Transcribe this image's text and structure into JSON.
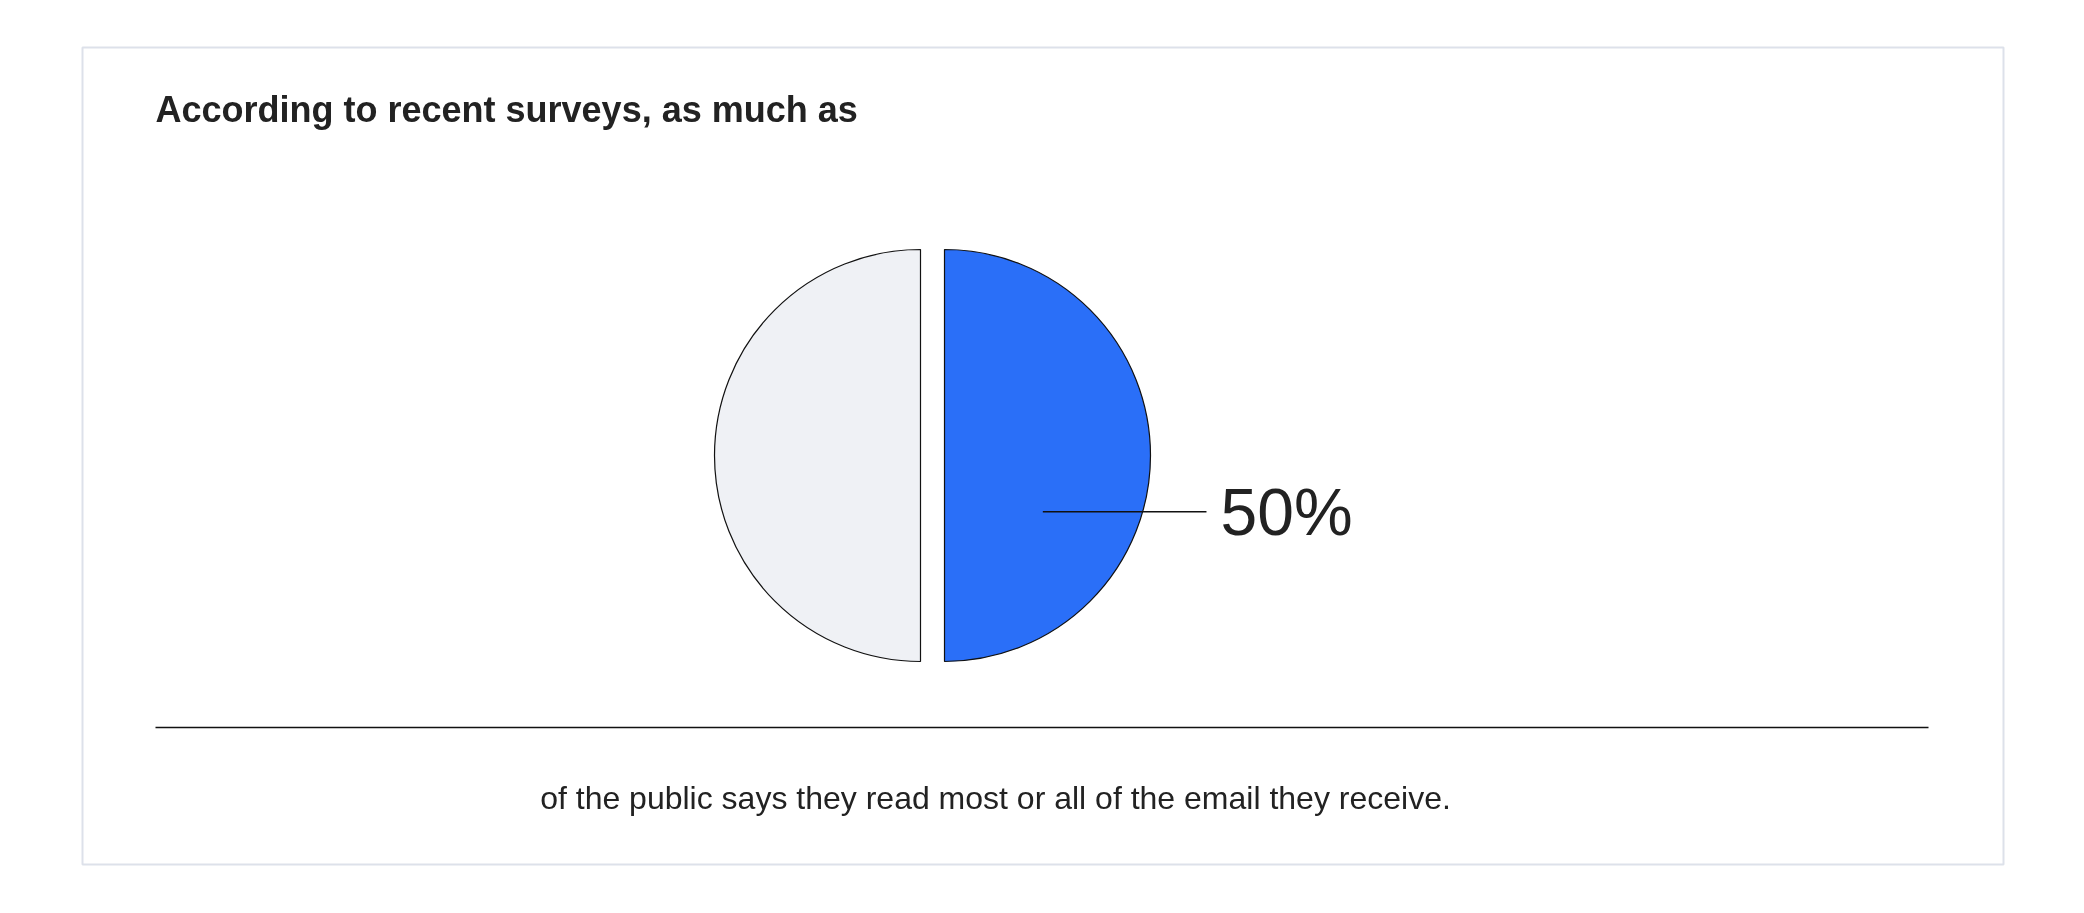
{
  "chart_data": {
    "type": "pie",
    "title": "According to recent surveys, as much as",
    "categories": [
      null,
      null
    ],
    "values": [
      50,
      50
    ],
    "colors": [
      "#2a6ff8",
      "#eff1f5"
    ],
    "value_labels": [
      "50%",
      null
    ],
    "annotations": [
      "of the public says they read most or all of the email they receive."
    ]
  }
}
